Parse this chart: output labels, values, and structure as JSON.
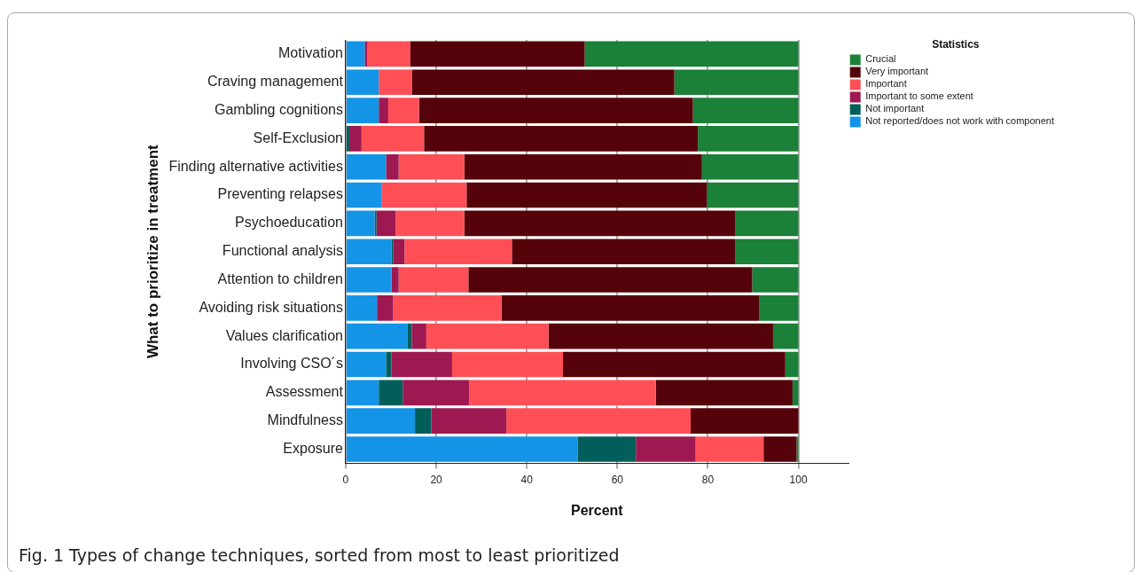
{
  "chart_data": {
    "type": "bar",
    "orientation": "horizontal",
    "stacked": true,
    "xlabel": "Percent",
    "ylabel": "What to prioritize in treatment",
    "legend_title": "Statistics",
    "legend": "top right",
    "grid": "x",
    "categories": [
      "Motivation",
      "Craving management",
      "Gambling cognitions",
      "Self-Exclusion",
      "Finding alternative activities",
      "Preventing relapses",
      "Psychoeducation",
      "Functional analysis",
      "Attention to children",
      "Avoiding risk situations",
      "Values clarification",
      "Involving CSO´s",
      "Assessment",
      "Mindfulness",
      "Exposure"
    ],
    "xlim": [
      0,
      111
    ],
    "xticks": [
      0,
      20,
      40,
      60,
      80,
      100
    ],
    "series": [
      {
        "name": "Not reported/does not work with component",
        "color": "#1494e6",
        "values": [
          4.2,
          7.3,
          7.3,
          0,
          8.9,
          8.0,
          6.4,
          10.1,
          10.1,
          6.9,
          13.7,
          8.9,
          7.3,
          15.3,
          51.2
        ]
      },
      {
        "name": "Not important",
        "color": "#025e5b",
        "values": [
          0,
          0,
          0,
          0.8,
          0,
          0,
          0.4,
          0.4,
          0,
          0,
          0.9,
          1.2,
          5.3,
          3.6,
          12.9
        ]
      },
      {
        "name": "Important to some extent",
        "color": "#9e1951",
        "values": [
          0.6,
          0,
          2.1,
          2.7,
          2.8,
          0,
          4.2,
          2.5,
          1.6,
          3.6,
          3.2,
          13.4,
          14.7,
          16.6,
          13.2
        ]
      },
      {
        "name": "Important",
        "color": "#fe4f57",
        "values": [
          9.4,
          7.3,
          6.8,
          13.8,
          14.5,
          18.7,
          15.2,
          23.7,
          15.4,
          23.9,
          27.0,
          24.5,
          41.2,
          40.7,
          15.0
        ]
      },
      {
        "name": "Very important",
        "color": "#55020a",
        "values": [
          38.6,
          58.0,
          60.5,
          60.5,
          52.5,
          53.1,
          59.8,
          49.3,
          62.7,
          57.0,
          49.6,
          49.1,
          30.2,
          23.8,
          7.3
        ]
      },
      {
        "name": "Crucial",
        "color": "#1b8038",
        "values": [
          47.2,
          27.4,
          23.3,
          22.2,
          21.3,
          20.2,
          14.0,
          14.0,
          10.2,
          8.6,
          5.6,
          2.9,
          1.3,
          0,
          0.4
        ]
      }
    ],
    "annotations": [
      "Fig. 1  Types of change techniques, sorted from most to least prioritized"
    ]
  }
}
